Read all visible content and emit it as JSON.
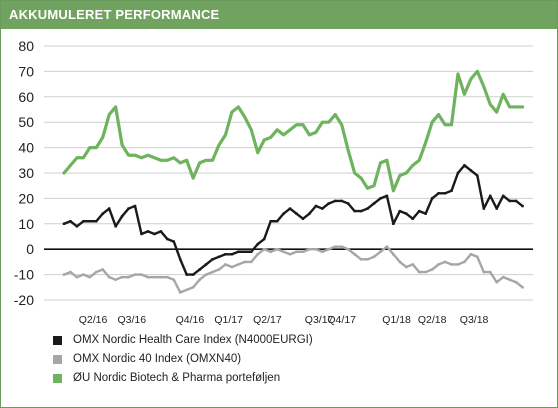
{
  "header": {
    "title": "AKKUMULERET PERFORMANCE"
  },
  "colors": {
    "header_bg": "#6fa35f",
    "health_care": "#1a1a1a",
    "omx40": "#a6a6a6",
    "biotech": "#6fb35f"
  },
  "chart_data": {
    "type": "line",
    "title": "",
    "xlabel": "",
    "ylabel": "",
    "ylim": [
      -20,
      80
    ],
    "yticks": [
      -20,
      -10,
      0,
      10,
      20,
      30,
      40,
      50,
      60,
      70,
      80
    ],
    "ytick_labels": [
      "-20",
      "-10",
      "0",
      "10",
      "20",
      "30",
      "40",
      "50",
      "60",
      "70",
      "80"
    ],
    "grid": "horizontal",
    "legend_position": "bottom-left",
    "x_tick_labels": [
      {
        "label": "Q2/16",
        "x": 4.5
      },
      {
        "label": "Q3/16",
        "x": 10.5
      },
      {
        "label": "Q4/16",
        "x": 19.5
      },
      {
        "label": "Q1/17",
        "x": 25.5
      },
      {
        "label": "Q2/17",
        "x": 31.5
      },
      {
        "label": "Q3/17",
        "x": 39.5
      },
      {
        "label": "Q4/17",
        "x": 43
      },
      {
        "label": "Q1/18",
        "x": 51.5
      },
      {
        "label": "Q2/18",
        "x": 57
      },
      {
        "label": "Q3/18",
        "x": 63.5
      }
    ],
    "x_range": [
      0,
      72
    ],
    "series": [
      {
        "name": "OMX Nordic Health Care Index (N4000EURGI)",
        "color_key": "health_care",
        "marker": "square",
        "values": [
          10,
          11,
          9,
          11,
          11,
          11,
          14,
          16,
          9,
          13,
          16,
          17,
          6,
          7,
          6,
          7,
          4,
          3,
          -4,
          -10,
          -10,
          -8,
          -6,
          -4,
          -3,
          -2,
          -2,
          -1,
          -1,
          -1,
          2,
          4,
          11,
          11,
          14,
          16,
          14,
          12,
          14,
          17,
          16,
          18,
          19,
          19,
          18,
          15,
          15,
          16,
          18,
          20,
          21,
          10,
          15,
          14,
          12,
          15,
          14,
          20,
          22,
          22,
          23,
          30,
          33,
          31,
          29,
          16,
          21,
          16,
          21,
          19,
          19,
          17
        ]
      },
      {
        "name": "OMX Nordic 40 Index (OMXN40)",
        "color_key": "omx40",
        "marker": "square",
        "values": [
          -10,
          -9,
          -11,
          -10,
          -11,
          -9,
          -8,
          -11,
          -12,
          -11,
          -11,
          -10,
          -10,
          -11,
          -11,
          -11,
          -11,
          -12,
          -17,
          -16,
          -15,
          -12,
          -10,
          -9,
          -8,
          -6,
          -7,
          -6,
          -5,
          -5,
          -2,
          0,
          -1,
          0,
          -1,
          -2,
          -1,
          -1,
          0,
          0,
          -1,
          0,
          1,
          1,
          0,
          -2,
          -4,
          -4,
          -3,
          -1,
          1,
          -2,
          -5,
          -7,
          -6,
          -9,
          -9,
          -8,
          -6,
          -5,
          -6,
          -6,
          -5,
          -2,
          -3,
          -9,
          -9,
          -13,
          -11,
          -12,
          -13,
          -15
        ]
      },
      {
        "name": "ØU Nordic Biotech & Pharma porteføljen",
        "color_key": "biotech",
        "marker": "square",
        "values": [
          30,
          33,
          36,
          36,
          40,
          40,
          44,
          53,
          56,
          41,
          37,
          37,
          36,
          37,
          36,
          35,
          35,
          36,
          34,
          35,
          28,
          34,
          35,
          35,
          41,
          45,
          54,
          56,
          52,
          47,
          38,
          43,
          44,
          47,
          45,
          47,
          49,
          49,
          45,
          46,
          50,
          50,
          53,
          49,
          39,
          30,
          28,
          24,
          25,
          34,
          35,
          23,
          29,
          30,
          33,
          35,
          42,
          50,
          53,
          49,
          49,
          69,
          61,
          67,
          70,
          64,
          57,
          54,
          61,
          56,
          56,
          56
        ]
      }
    ]
  }
}
